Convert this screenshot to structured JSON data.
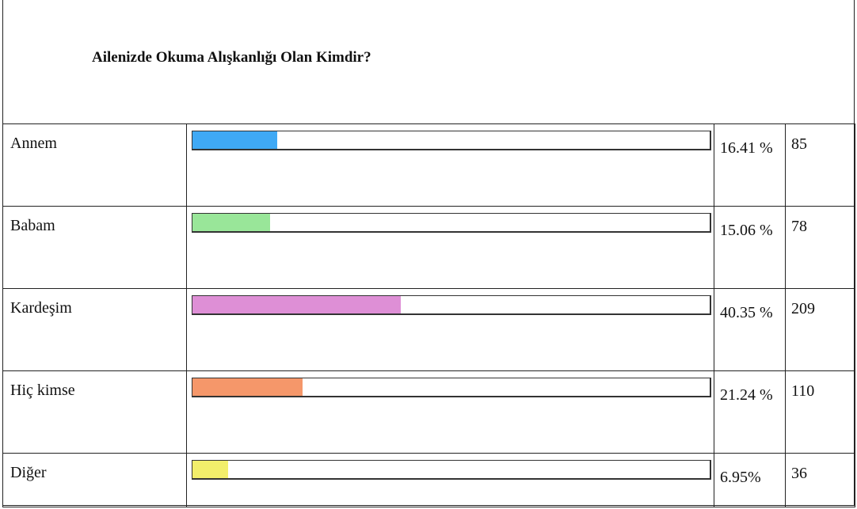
{
  "chart_data": {
    "type": "bar",
    "title": "Ailenizde Okuma Alışkanlığı Olan Kimdir?",
    "orientation": "horizontal",
    "xlim": [
      0,
      100
    ],
    "rows": [
      {
        "label": "Annem",
        "percent": 16.41,
        "percent_text": "16.41 %",
        "count": 85,
        "count_text": "85",
        "color": "#3fa9f5"
      },
      {
        "label": "Babam",
        "percent": 15.06,
        "percent_text": "15.06 %",
        "count": 78,
        "count_text": "78",
        "color": "#99e699"
      },
      {
        "label": "Kardeşim",
        "percent": 40.35,
        "percent_text": "40.35 %",
        "count": 209,
        "count_text": "209",
        "color": "#de8fd6"
      },
      {
        "label": "Hiç kimse",
        "percent": 21.24,
        "percent_text": "21.24 %",
        "count": 110,
        "count_text": "110",
        "color": "#f5976a"
      },
      {
        "label": "Diğer",
        "percent": 6.95,
        "percent_text": "6.95%",
        "count": 36,
        "count_text": "36",
        "color": "#f2ee6b"
      }
    ]
  }
}
